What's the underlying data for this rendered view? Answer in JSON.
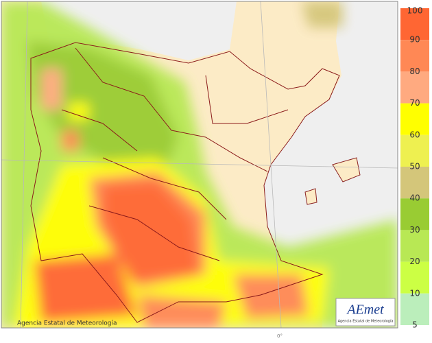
{
  "legend": {
    "levels": [
      100,
      90,
      80,
      70,
      60,
      50,
      40,
      30,
      20,
      10,
      5
    ],
    "colors": [
      "#ff6633",
      "#ff8855",
      "#ffaa80",
      "#ffff00",
      "#eef050",
      "#d4c67a",
      "#99cc33",
      "#b8e854",
      "#ccff44",
      "#bbeebb"
    ]
  },
  "map": {
    "meridian_label": "0°"
  },
  "footer": {
    "credit": "Agencia Estatal de Meteorología"
  },
  "logo": {
    "name": "AEmet",
    "subtitle": "Agencia Estatal de Meteorología"
  }
}
